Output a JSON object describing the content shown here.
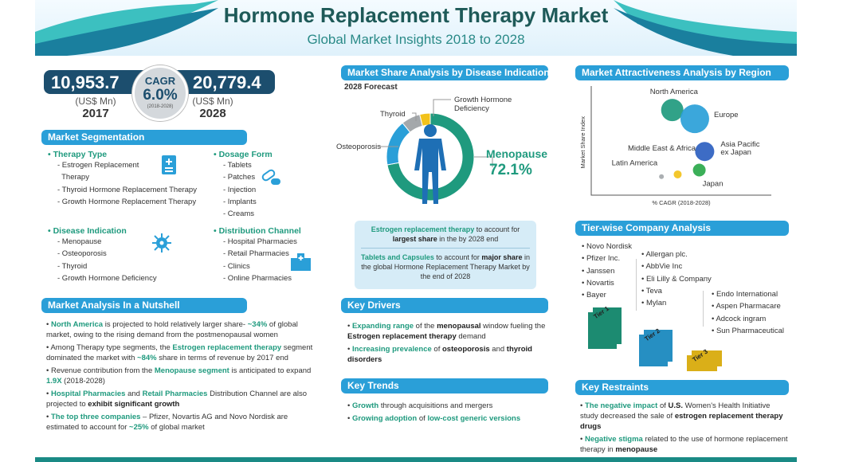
{
  "header": {
    "title": "Hormone Replacement Therapy Market",
    "subtitle": "Global Market Insights 2018 to 2028"
  },
  "stats": {
    "value_2017": "10,953.7",
    "unit_2017": "(US$ Mn)",
    "year_2017": "2017",
    "value_2028": "20,779.4",
    "unit_2028": "(US$ Mn)",
    "year_2028": "2028",
    "cagr_label": "CAGR",
    "cagr_value": "6.0%",
    "cagr_period": "(2018-2028)"
  },
  "segmentation": {
    "title": "Market Segmentation",
    "groups": [
      {
        "heading": "Therapy Type",
        "items": [
          "- Estrogen Replacement",
          "  Therapy",
          "- Thyroid Hormone Replacement Therapy",
          "- Growth Hormone Replacement Therapy"
        ],
        "icon": "document-plus-icon"
      },
      {
        "heading": "Dosage Form",
        "items": [
          "- Tablets",
          "- Patches",
          "- Injection",
          "- Implants",
          "- Creams"
        ],
        "icon": "capsule-icon"
      },
      {
        "heading": "Disease Indication",
        "items": [
          "- Menopause",
          "- Osteoporosis",
          "- Thyroid",
          "- Growth Hormone Deficiency"
        ],
        "icon": "virus-icon"
      },
      {
        "heading": "Distribution Channel",
        "items": [
          "- Hospital Pharmacies",
          "- Retail Pharmacies",
          "- Clinics",
          "- Online Pharmacies"
        ],
        "icon": "hospital-icon"
      }
    ]
  },
  "nutshell": {
    "title": "Market Analysis In a Nutshell",
    "bullets": [
      [
        {
          "t": "North America",
          "s": "hl"
        },
        {
          "t": " is projected to hold relatively larger share- "
        },
        {
          "t": "~34%",
          "s": "hl"
        },
        {
          "t": " of global market, owing to the rising demand from the postmenopausal women"
        }
      ],
      [
        {
          "t": "Among Therapy type segments, the "
        },
        {
          "t": "Estrogen replacement therapy",
          "s": "hl"
        },
        {
          "t": " segment dominated the market with "
        },
        {
          "t": "~84%",
          "s": "hl"
        },
        {
          "t": " share in terms of revenue by 2017 end"
        }
      ],
      [
        {
          "t": "Revenue contribution from the "
        },
        {
          "t": "Menopause segment",
          "s": "hl"
        },
        {
          "t": " is anticipated to expand "
        },
        {
          "t": "1.9X",
          "s": "hl"
        },
        {
          "t": " (2018-2028)"
        }
      ],
      [
        {
          "t": "Hospital Pharmacies",
          "s": "hl"
        },
        {
          "t": " and "
        },
        {
          "t": "Retail Pharmacies",
          "s": "hl"
        },
        {
          "t": " Distribution Channel are also projected to "
        },
        {
          "t": "exhibit significant growth",
          "s": "b"
        }
      ],
      [
        {
          "t": "The top three companies",
          "s": "hl"
        },
        {
          "t": " – Pfizer, Novartis AG and Novo Nordisk are estimated to account for "
        },
        {
          "t": "~25%",
          "s": "hl"
        },
        {
          "t": " of global market"
        }
      ]
    ]
  },
  "share": {
    "title": "Market Share Analysis by Disease Indication,",
    "subtitle": "2028 Forecast",
    "highlight_label": "Menopause",
    "highlight_value": "72.1%"
  },
  "chart_data": [
    {
      "type": "pie",
      "title": "Market Share Analysis by Disease Indication, 2028 Forecast",
      "categories": [
        "Menopause",
        "Osteoporosis",
        "Thyroid",
        "Growth Hormone Deficiency"
      ],
      "values": [
        72.1,
        17,
        7,
        3.9
      ],
      "colors": [
        "#1f9a7e",
        "#2a9fd8",
        "#a4a8ab",
        "#f2c21b"
      ]
    },
    {
      "type": "scatter",
      "title": "Market Attractiveness Analysis by Region",
      "xlabel": "% CAGR (2018-2028)",
      "ylabel": "Market  Share Index",
      "xlim": [
        0,
        10
      ],
      "ylim": [
        0,
        10
      ],
      "points": [
        {
          "name": "North America",
          "x": 4.5,
          "y": 7.8,
          "size": 14,
          "color": "#1f9a7e"
        },
        {
          "name": "Europe",
          "x": 5.75,
          "y": 7.0,
          "size": 18,
          "color": "#2a9fd8"
        },
        {
          "name": "Asia Pacific ex Japan",
          "x": 6.3,
          "y": 4.0,
          "size": 12,
          "color": "#2d5fc0"
        },
        {
          "name": "Japan",
          "x": 6.0,
          "y": 2.3,
          "size": 8,
          "color": "#2aa84a"
        },
        {
          "name": "Middle East & Africa",
          "x": 4.8,
          "y": 1.9,
          "size": 5,
          "color": "#f2c21b"
        },
        {
          "name": "Latin America",
          "x": 3.9,
          "y": 1.7,
          "size": 3,
          "color": "#a4a8ab"
        }
      ]
    }
  ],
  "infobox": [
    [
      {
        "t": "Estrogen replacement therapy",
        "s": "hl"
      },
      {
        "t": " to account for "
      },
      {
        "t": "largest share",
        "s": "b"
      },
      {
        "t": " in the by 2028 end"
      }
    ],
    [
      {
        "t": "Tablets and Capsules",
        "s": "hl"
      },
      {
        "t": " to account for "
      },
      {
        "t": "major share",
        "s": "b"
      },
      {
        "t": " in the global Hormone Replacement Therapy Market by the end of 2028"
      }
    ]
  ],
  "drivers": {
    "title": "Key Drivers",
    "bullets": [
      [
        {
          "t": "Expanding range",
          "s": "hl"
        },
        {
          "t": " of the "
        },
        {
          "t": "menopausal",
          "s": "b"
        },
        {
          "t": " window fueling the "
        },
        {
          "t": "Estrogen replacement therapy",
          "s": "b"
        },
        {
          "t": " demand"
        }
      ],
      [
        {
          "t": "Increasing prevalence",
          "s": "hl"
        },
        {
          "t": " of "
        },
        {
          "t": "osteoporosis",
          "s": "b"
        },
        {
          "t": " and "
        },
        {
          "t": "thyroid disorders",
          "s": "b"
        }
      ]
    ]
  },
  "trends": {
    "title": "Key Trends",
    "bullets": [
      [
        {
          "t": "Growth",
          "s": "hl"
        },
        {
          "t": " through acquisitions and mergers"
        }
      ],
      [
        {
          "t": "Growing adoption",
          "s": "hl"
        },
        {
          "t": " of "
        },
        {
          "t": "low-cost generic versions",
          "s": "hl"
        }
      ]
    ]
  },
  "region": {
    "title": "Market Attractiveness Analysis by Region"
  },
  "tiers": {
    "title": "Tier-wise Company Analysis",
    "tier1": {
      "label": "Tier 1",
      "companies": [
        "Novo Nordisk",
        "Pfizer Inc.",
        "Janssen",
        "Novartis",
        "Bayer"
      ],
      "color": "#1f9a7e"
    },
    "tier2": {
      "label": "Tier 2",
      "companies": [
        "Allergan plc.",
        "AbbVie Inc",
        "Eli Lilly & Company",
        "Teva",
        "Mylan"
      ],
      "color": "#2a9fd8"
    },
    "tier3": {
      "label": "Tier 3",
      "companies": [
        "Endo International",
        "Aspen Pharmacare",
        "Adcock ingram",
        "Sun Pharmaceutical"
      ],
      "color": "#f2c21b"
    }
  },
  "restraints": {
    "title": "Key Restraints",
    "bullets": [
      [
        {
          "t": "The negative impact",
          "s": "hl"
        },
        {
          "t": " of "
        },
        {
          "t": "U.S.",
          "s": "b"
        },
        {
          "t": " Women's Health Initiative study decreased the sale of "
        },
        {
          "t": "estrogen replacement therapy drugs",
          "s": "b"
        }
      ],
      [
        {
          "t": "Negative stigma",
          "s": "hl"
        },
        {
          "t": " related to the use of hormone replacement therapy in "
        },
        {
          "t": "menopause",
          "s": "b"
        }
      ]
    ]
  }
}
